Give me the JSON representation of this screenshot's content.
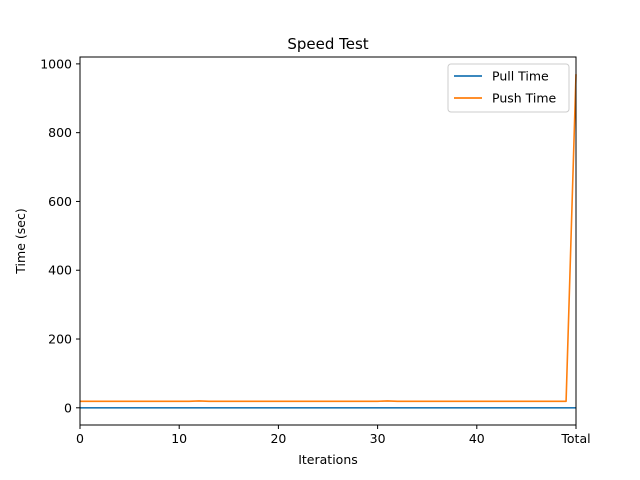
{
  "chart_data": {
    "type": "line",
    "title": "Speed Test",
    "xlabel": "Iterations",
    "ylabel": "Time (sec)",
    "xlim": [
      0,
      50
    ],
    "ylim": [
      -50,
      1020
    ],
    "x_ticks": [
      {
        "value": 0,
        "label": "0"
      },
      {
        "value": 10,
        "label": "10"
      },
      {
        "value": 20,
        "label": "20"
      },
      {
        "value": 30,
        "label": "30"
      },
      {
        "value": 40,
        "label": "40"
      },
      {
        "value": 50,
        "label": "Total"
      }
    ],
    "y_ticks": [
      {
        "value": 0,
        "label": "0"
      },
      {
        "value": 200,
        "label": "200"
      },
      {
        "value": 400,
        "label": "400"
      },
      {
        "value": 600,
        "label": "600"
      },
      {
        "value": 800,
        "label": "800"
      },
      {
        "value": 1000,
        "label": "1000"
      }
    ],
    "x": [
      0,
      1,
      2,
      3,
      4,
      5,
      6,
      7,
      8,
      9,
      10,
      11,
      12,
      13,
      14,
      15,
      16,
      17,
      18,
      19,
      20,
      21,
      22,
      23,
      24,
      25,
      26,
      27,
      28,
      29,
      30,
      31,
      32,
      33,
      34,
      35,
      36,
      37,
      38,
      39,
      40,
      41,
      42,
      43,
      44,
      45,
      46,
      47,
      48,
      49,
      50
    ],
    "series": [
      {
        "name": "Pull Time",
        "color": "#1f77b4",
        "values": [
          0,
          0,
          0,
          0,
          0,
          0,
          0,
          0,
          0,
          0,
          0,
          0,
          0,
          0,
          0,
          0,
          0,
          0,
          0,
          0,
          0,
          0,
          0,
          0,
          0,
          0,
          0,
          0,
          0,
          0,
          0,
          0,
          0,
          0,
          0,
          0,
          0,
          0,
          0,
          0,
          0,
          0,
          0,
          0,
          0,
          0,
          0,
          0,
          0,
          0,
          0
        ]
      },
      {
        "name": "Push Time",
        "color": "#ff7f0e",
        "values": [
          19,
          19,
          19,
          19,
          19,
          19,
          19,
          19,
          19,
          19,
          19,
          19,
          20,
          19,
          19,
          19,
          19,
          19,
          19,
          19,
          19,
          19,
          19,
          19,
          19,
          19,
          19,
          19,
          19,
          19,
          19,
          20,
          19,
          19,
          19,
          19,
          19,
          19,
          19,
          19,
          19,
          19,
          19,
          19,
          19,
          19,
          19,
          19,
          19,
          19,
          970
        ]
      }
    ],
    "grid": false,
    "legend": "top-right"
  }
}
